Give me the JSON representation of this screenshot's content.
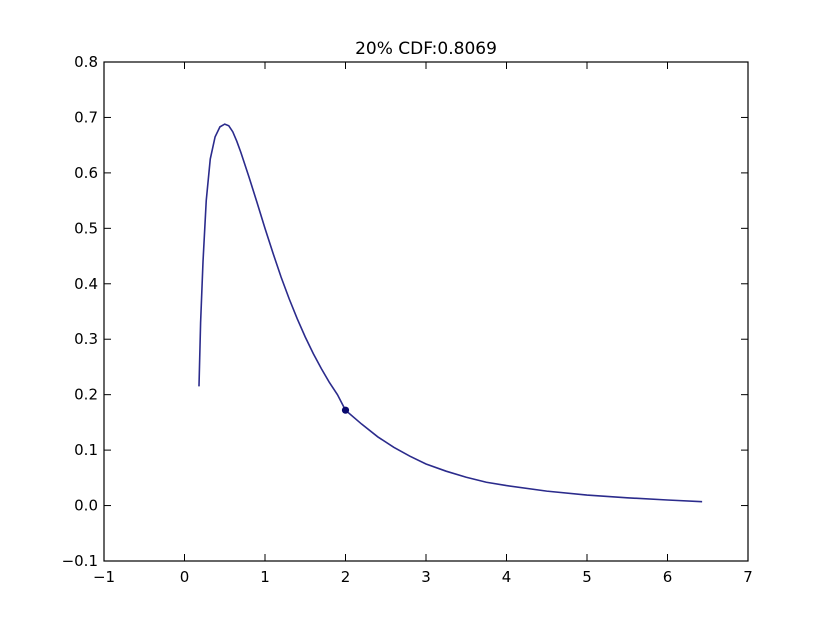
{
  "chart_data": {
    "type": "line",
    "title": "20% CDF:0.8069",
    "xlabel": "",
    "ylabel": "",
    "xlim": [
      -1,
      7
    ],
    "ylim": [
      -0.1,
      0.8
    ],
    "xticks": [
      -1,
      0,
      1,
      2,
      3,
      4,
      5,
      6,
      7
    ],
    "yticks": [
      -0.1,
      0.0,
      0.1,
      0.2,
      0.3,
      0.4,
      0.5,
      0.6,
      0.7,
      0.8
    ],
    "xtick_labels": [
      "−1",
      "0",
      "1",
      "2",
      "3",
      "4",
      "5",
      "6",
      "7"
    ],
    "ytick_labels": [
      "−0.1",
      "0.0",
      "0.1",
      "0.2",
      "0.3",
      "0.4",
      "0.5",
      "0.6",
      "0.7",
      "0.8"
    ],
    "grid": false,
    "line_color": "#2b2b8c",
    "marker_color": "#0a0a6e",
    "series": [
      {
        "x": [
          0.18,
          0.2,
          0.23,
          0.27,
          0.32,
          0.38,
          0.44,
          0.5,
          0.55,
          0.6,
          0.65,
          0.7,
          0.8,
          0.9,
          1.0,
          1.1,
          1.2,
          1.3,
          1.4,
          1.5,
          1.6,
          1.7,
          1.8,
          1.9,
          2.0,
          2.2,
          2.4,
          2.6,
          2.8,
          3.0,
          3.25,
          3.5,
          3.75,
          4.0,
          4.5,
          5.0,
          5.5,
          6.0,
          6.43
        ],
        "y": [
          0.215,
          0.33,
          0.44,
          0.55,
          0.625,
          0.665,
          0.683,
          0.688,
          0.685,
          0.674,
          0.657,
          0.637,
          0.593,
          0.547,
          0.5,
          0.455,
          0.412,
          0.373,
          0.337,
          0.304,
          0.274,
          0.247,
          0.222,
          0.2,
          0.172,
          0.147,
          0.124,
          0.105,
          0.089,
          0.075,
          0.062,
          0.051,
          0.042,
          0.036,
          0.026,
          0.019,
          0.014,
          0.01,
          0.007
        ]
      }
    ],
    "marker": {
      "x": 2.0,
      "y": 0.172
    }
  }
}
